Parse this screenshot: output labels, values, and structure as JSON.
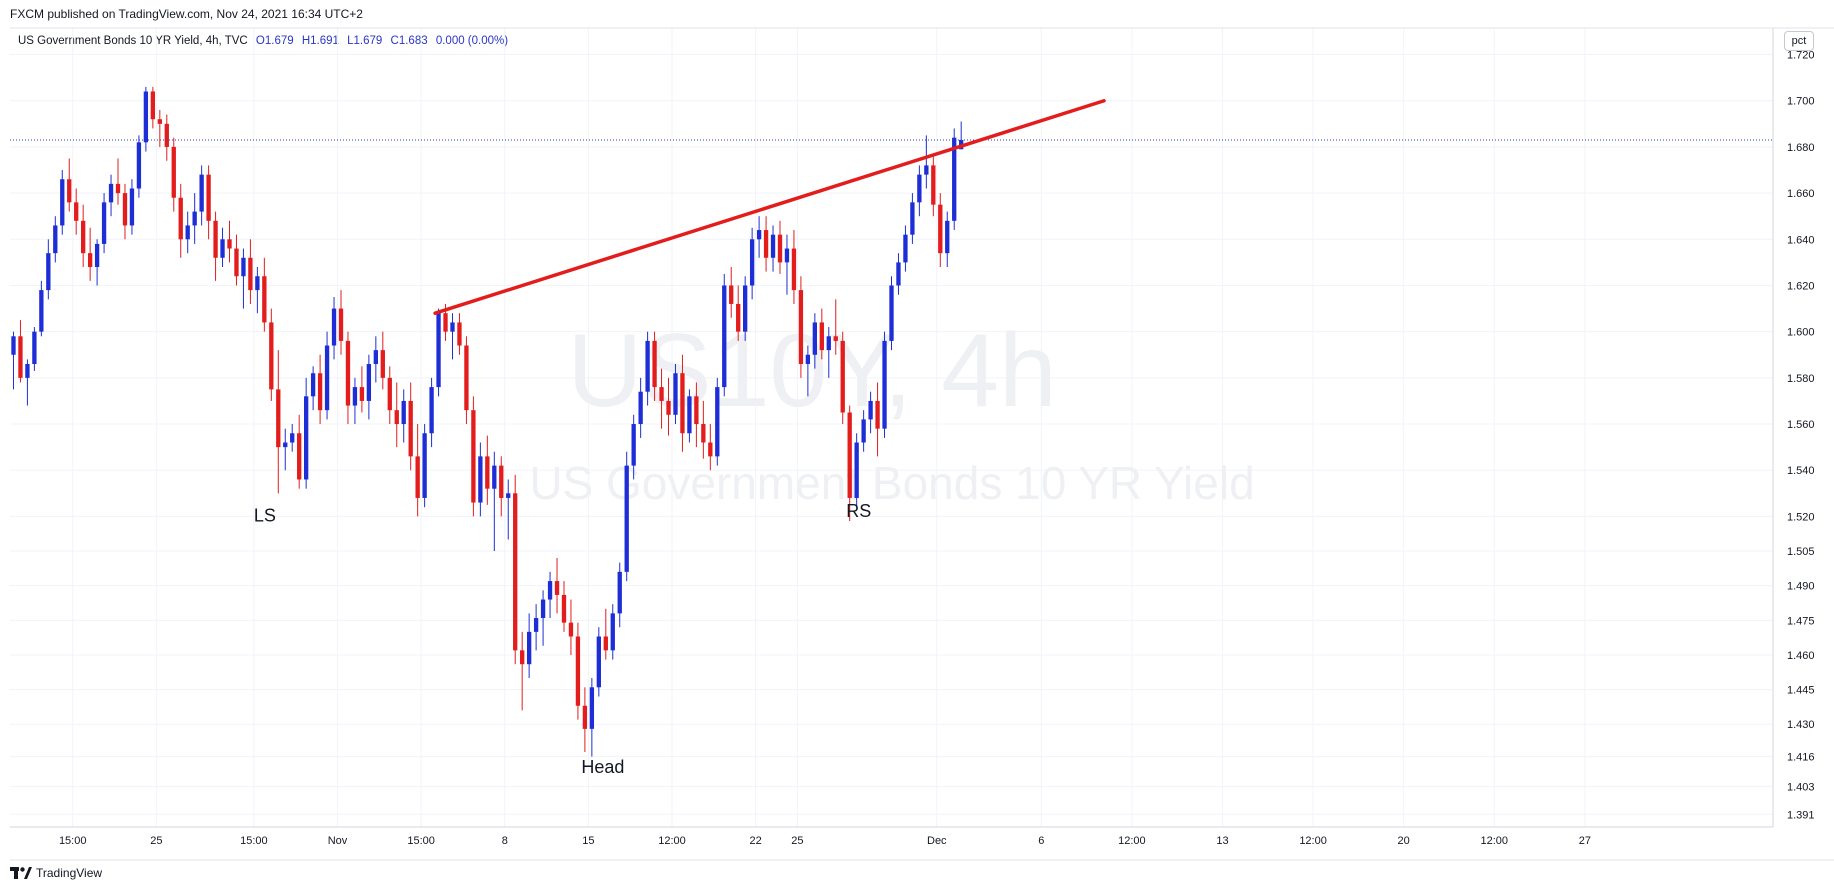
{
  "header": {
    "published": "FXCM published on TradingView.com, Nov 24, 2021 16:34 UTC+2"
  },
  "legend": {
    "symbol": "US Government Bonds 10 YR Yield, 4h, TVC",
    "open": "O1.679",
    "high": "H1.691",
    "low": "L1.679",
    "close": "C1.683",
    "change": "0.000 (0.00%)"
  },
  "scale_button": "pct",
  "footer": {
    "brand": "TradingView"
  },
  "watermark": {
    "line1": "US10Y, 4h",
    "line2": "US Government Bonds 10 YR Yield"
  },
  "colors": {
    "up": "#1e2ed6",
    "down": "#e31c1c",
    "trendline": "#e31c1c",
    "last_price_line": "#2a36c8",
    "grid": "#f0f3fa"
  },
  "chart_data": {
    "type": "candlestick",
    "ylim": [
      1.3855,
      1.7315
    ],
    "y_ticks": [
      1.72,
      1.7,
      1.68,
      1.66,
      1.64,
      1.62,
      1.6,
      1.58,
      1.56,
      1.54,
      1.52,
      1.505,
      1.49,
      1.475,
      1.46,
      1.445,
      1.43,
      1.416,
      1.403,
      1.391
    ],
    "y_tick_labels": [
      "1.720",
      "1.700",
      "1.680",
      "1.660",
      "1.640",
      "1.620",
      "1.600",
      "1.580",
      "1.560",
      "1.540",
      "1.520",
      "1.505",
      "1.490",
      "1.475",
      "1.460",
      "1.445",
      "1.430",
      "1.416",
      "1.403",
      "1.391"
    ],
    "x_tick_labels": [
      "15:00",
      "25",
      "15:00",
      "Nov",
      "15:00",
      "8",
      "15",
      "12:00",
      "22",
      "25",
      "Dec",
      "6",
      "12:00",
      "13",
      "12:00",
      "20",
      "12:00",
      "27"
    ],
    "x_tick_bars": [
      9,
      21,
      35,
      47,
      59,
      71,
      83,
      95,
      107,
      113,
      133,
      148,
      161,
      174,
      187,
      200,
      213,
      226
    ],
    "x_bar_range": [
      0,
      253
    ],
    "last_price": 1.683,
    "trendline": {
      "start": [
        61,
        1.608
      ],
      "end": [
        157,
        1.7
      ]
    },
    "annotations": [
      {
        "text": "LS",
        "bar": 35,
        "price": 1.523
      },
      {
        "text": "Head",
        "bar": 82,
        "price": 1.414
      },
      {
        "text": "RS",
        "bar": 120,
        "price": 1.525
      }
    ],
    "candles": [
      [
        1.59,
        1.6,
        1.575,
        1.598
      ],
      [
        1.598,
        1.605,
        1.578,
        1.58
      ],
      [
        1.58,
        1.588,
        1.568,
        1.586
      ],
      [
        1.586,
        1.602,
        1.583,
        1.6
      ],
      [
        1.6,
        1.622,
        1.598,
        1.618
      ],
      [
        1.618,
        1.64,
        1.614,
        1.634
      ],
      [
        1.634,
        1.65,
        1.63,
        1.646
      ],
      [
        1.646,
        1.67,
        1.642,
        1.666
      ],
      [
        1.666,
        1.675,
        1.652,
        1.656
      ],
      [
        1.656,
        1.662,
        1.642,
        1.648
      ],
      [
        1.648,
        1.655,
        1.628,
        1.634
      ],
      [
        1.634,
        1.645,
        1.622,
        1.628
      ],
      [
        1.628,
        1.64,
        1.62,
        1.638
      ],
      [
        1.638,
        1.66,
        1.634,
        1.656
      ],
      [
        1.656,
        1.668,
        1.65,
        1.664
      ],
      [
        1.664,
        1.675,
        1.655,
        1.66
      ],
      [
        1.66,
        1.664,
        1.64,
        1.646
      ],
      [
        1.646,
        1.666,
        1.642,
        1.662
      ],
      [
        1.662,
        1.685,
        1.658,
        1.682
      ],
      [
        1.682,
        1.706,
        1.678,
        1.704
      ],
      [
        1.704,
        1.706,
        1.688,
        1.692
      ],
      [
        1.692,
        1.696,
        1.68,
        1.69
      ],
      [
        1.69,
        1.694,
        1.674,
        1.68
      ],
      [
        1.68,
        1.684,
        1.652,
        1.658
      ],
      [
        1.658,
        1.664,
        1.632,
        1.64
      ],
      [
        1.64,
        1.652,
        1.634,
        1.646
      ],
      [
        1.646,
        1.66,
        1.638,
        1.652
      ],
      [
        1.652,
        1.672,
        1.646,
        1.668
      ],
      [
        1.668,
        1.672,
        1.64,
        1.648
      ],
      [
        1.648,
        1.652,
        1.622,
        1.632
      ],
      [
        1.632,
        1.645,
        1.628,
        1.64
      ],
      [
        1.64,
        1.648,
        1.63,
        1.636
      ],
      [
        1.636,
        1.642,
        1.62,
        1.624
      ],
      [
        1.624,
        1.636,
        1.61,
        1.632
      ],
      [
        1.632,
        1.64,
        1.612,
        1.618
      ],
      [
        1.618,
        1.628,
        1.608,
        1.624
      ],
      [
        1.624,
        1.632,
        1.6,
        1.604
      ],
      [
        1.604,
        1.61,
        1.57,
        1.575
      ],
      [
        1.575,
        1.592,
        1.53,
        1.55
      ],
      [
        1.55,
        1.558,
        1.54,
        1.552
      ],
      [
        1.552,
        1.56,
        1.548,
        1.556
      ],
      [
        1.556,
        1.564,
        1.532,
        1.536
      ],
      [
        1.536,
        1.58,
        1.532,
        1.572
      ],
      [
        1.572,
        1.585,
        1.566,
        1.582
      ],
      [
        1.582,
        1.59,
        1.56,
        1.566
      ],
      [
        1.566,
        1.6,
        1.562,
        1.594
      ],
      [
        1.594,
        1.615,
        1.588,
        1.61
      ],
      [
        1.61,
        1.618,
        1.59,
        1.596
      ],
      [
        1.596,
        1.6,
        1.56,
        1.568
      ],
      [
        1.568,
        1.58,
        1.56,
        1.576
      ],
      [
        1.576,
        1.585,
        1.565,
        1.57
      ],
      [
        1.57,
        1.59,
        1.562,
        1.586
      ],
      [
        1.586,
        1.598,
        1.578,
        1.592
      ],
      [
        1.592,
        1.6,
        1.575,
        1.58
      ],
      [
        1.58,
        1.585,
        1.56,
        1.566
      ],
      [
        1.566,
        1.578,
        1.55,
        1.56
      ],
      [
        1.56,
        1.575,
        1.552,
        1.57
      ],
      [
        1.57,
        1.578,
        1.54,
        1.546
      ],
      [
        1.546,
        1.56,
        1.52,
        1.528
      ],
      [
        1.528,
        1.56,
        1.524,
        1.556
      ],
      [
        1.556,
        1.58,
        1.55,
        1.576
      ],
      [
        1.576,
        1.61,
        1.572,
        1.608
      ],
      [
        1.608,
        1.612,
        1.596,
        1.6
      ],
      [
        1.6,
        1.608,
        1.588,
        1.604
      ],
      [
        1.604,
        1.608,
        1.59,
        1.594
      ],
      [
        1.594,
        1.598,
        1.56,
        1.566
      ],
      [
        1.566,
        1.572,
        1.52,
        1.526
      ],
      [
        1.526,
        1.552,
        1.52,
        1.546
      ],
      [
        1.546,
        1.555,
        1.525,
        1.532
      ],
      [
        1.532,
        1.548,
        1.505,
        1.542
      ],
      [
        1.542,
        1.546,
        1.52,
        1.528
      ],
      [
        1.528,
        1.536,
        1.51,
        1.53
      ],
      [
        1.53,
        1.538,
        1.456,
        1.462
      ],
      [
        1.462,
        1.47,
        1.436,
        1.456
      ],
      [
        1.456,
        1.478,
        1.45,
        1.47
      ],
      [
        1.47,
        1.482,
        1.462,
        1.476
      ],
      [
        1.476,
        1.488,
        1.464,
        1.484
      ],
      [
        1.484,
        1.496,
        1.476,
        1.492
      ],
      [
        1.492,
        1.502,
        1.478,
        1.486
      ],
      [
        1.486,
        1.492,
        1.47,
        1.474
      ],
      [
        1.474,
        1.484,
        1.46,
        1.468
      ],
      [
        1.468,
        1.474,
        1.432,
        1.438
      ],
      [
        1.438,
        1.446,
        1.418,
        1.428
      ],
      [
        1.428,
        1.45,
        1.416,
        1.446
      ],
      [
        1.446,
        1.472,
        1.442,
        1.468
      ],
      [
        1.468,
        1.48,
        1.458,
        1.462
      ],
      [
        1.462,
        1.482,
        1.458,
        1.478
      ],
      [
        1.478,
        1.5,
        1.472,
        1.496
      ],
      [
        1.496,
        1.548,
        1.492,
        1.542
      ],
      [
        1.542,
        1.564,
        1.536,
        1.56
      ],
      [
        1.56,
        1.58,
        1.554,
        1.574
      ],
      [
        1.574,
        1.6,
        1.568,
        1.596
      ],
      [
        1.596,
        1.6,
        1.57,
        1.576
      ],
      [
        1.576,
        1.584,
        1.558,
        1.57
      ],
      [
        1.57,
        1.58,
        1.555,
        1.564
      ],
      [
        1.564,
        1.586,
        1.56,
        1.582
      ],
      [
        1.582,
        1.59,
        1.548,
        1.556
      ],
      [
        1.556,
        1.575,
        1.552,
        1.572
      ],
      [
        1.572,
        1.578,
        1.55,
        1.56
      ],
      [
        1.56,
        1.57,
        1.545,
        1.552
      ],
      [
        1.552,
        1.56,
        1.54,
        1.546
      ],
      [
        1.546,
        1.58,
        1.542,
        1.576
      ],
      [
        1.576,
        1.625,
        1.572,
        1.62
      ],
      [
        1.62,
        1.628,
        1.606,
        1.612
      ],
      [
        1.612,
        1.62,
        1.596,
        1.6
      ],
      [
        1.6,
        1.624,
        1.596,
        1.62
      ],
      [
        1.62,
        1.645,
        1.614,
        1.64
      ],
      [
        1.64,
        1.65,
        1.632,
        1.644
      ],
      [
        1.644,
        1.65,
        1.626,
        1.632
      ],
      [
        1.632,
        1.646,
        1.626,
        1.642
      ],
      [
        1.642,
        1.648,
        1.625,
        1.63
      ],
      [
        1.63,
        1.642,
        1.616,
        1.636
      ],
      [
        1.636,
        1.644,
        1.612,
        1.618
      ],
      [
        1.618,
        1.624,
        1.58,
        1.586
      ],
      [
        1.586,
        1.594,
        1.572,
        1.59
      ],
      [
        1.59,
        1.608,
        1.584,
        1.604
      ],
      [
        1.604,
        1.61,
        1.588,
        1.592
      ],
      [
        1.592,
        1.602,
        1.58,
        1.598
      ],
      [
        1.598,
        1.614,
        1.59,
        1.596
      ],
      [
        1.596,
        1.6,
        1.56,
        1.565
      ],
      [
        1.565,
        1.568,
        1.518,
        1.528
      ],
      [
        1.528,
        1.556,
        1.524,
        1.552
      ],
      [
        1.552,
        1.566,
        1.548,
        1.562
      ],
      [
        1.562,
        1.574,
        1.556,
        1.57
      ],
      [
        1.57,
        1.578,
        1.546,
        1.558
      ],
      [
        1.558,
        1.6,
        1.554,
        1.596
      ],
      [
        1.596,
        1.624,
        1.592,
        1.62
      ],
      [
        1.62,
        1.634,
        1.616,
        1.63
      ],
      [
        1.63,
        1.646,
        1.626,
        1.642
      ],
      [
        1.642,
        1.66,
        1.638,
        1.656
      ],
      [
        1.656,
        1.672,
        1.65,
        1.668
      ],
      [
        1.668,
        1.685,
        1.662,
        1.672
      ],
      [
        1.672,
        1.676,
        1.65,
        1.655
      ],
      [
        1.655,
        1.66,
        1.628,
        1.634
      ],
      [
        1.634,
        1.652,
        1.628,
        1.648
      ],
      [
        1.648,
        1.688,
        1.644,
        1.684
      ],
      [
        1.679,
        1.691,
        1.679,
        1.683
      ]
    ]
  }
}
